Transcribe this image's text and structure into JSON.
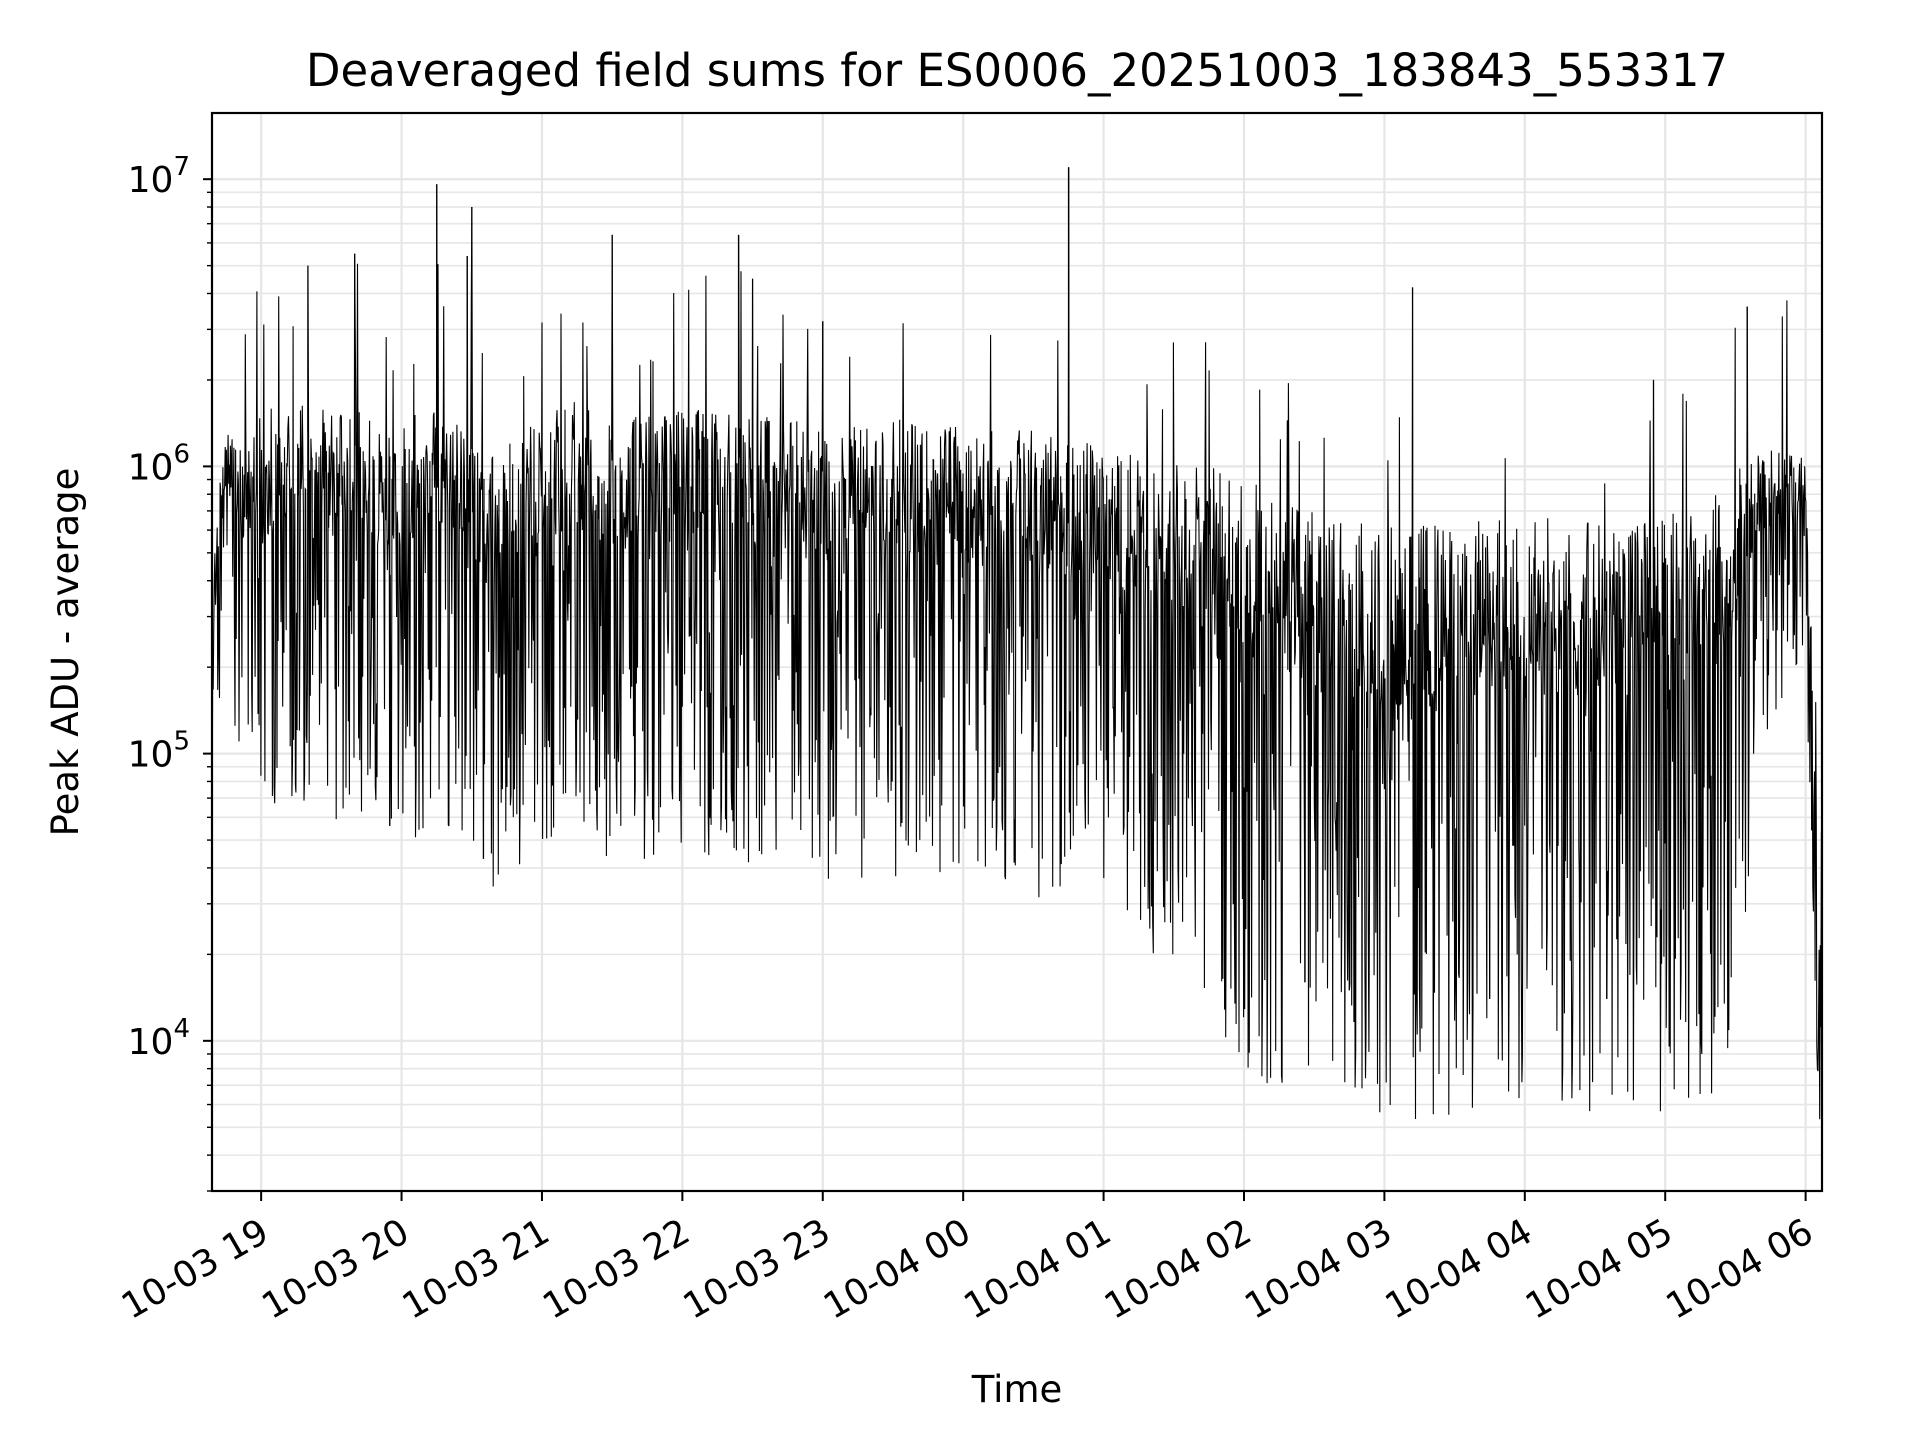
{
  "chart_data": {
    "type": "line",
    "title": "Deaveraged field sums for ES0006_20251003_183843_553317",
    "xlabel": "Time",
    "ylabel": "Peak ADU - average",
    "yscale": "log",
    "ylim": [
      3000,
      17000000
    ],
    "xlim": [
      "2025-10-03 18:39",
      "2025-10-04 06:07"
    ],
    "grid": true,
    "line_color": "#000000",
    "grid_color": "#e6e6e6",
    "x_ticks": [
      {
        "value": "2025-10-03 19:00",
        "label": "10-03 19"
      },
      {
        "value": "2025-10-03 20:00",
        "label": "10-03 20"
      },
      {
        "value": "2025-10-03 21:00",
        "label": "10-03 21"
      },
      {
        "value": "2025-10-03 22:00",
        "label": "10-03 22"
      },
      {
        "value": "2025-10-03 23:00",
        "label": "10-03 23"
      },
      {
        "value": "2025-10-04 00:00",
        "label": "10-04 00"
      },
      {
        "value": "2025-10-04 01:00",
        "label": "10-04 01"
      },
      {
        "value": "2025-10-04 02:00",
        "label": "10-04 02"
      },
      {
        "value": "2025-10-04 03:00",
        "label": "10-04 03"
      },
      {
        "value": "2025-10-04 04:00",
        "label": "10-04 04"
      },
      {
        "value": "2025-10-04 05:00",
        "label": "10-04 05"
      },
      {
        "value": "2025-10-04 06:00",
        "label": "10-04 06"
      }
    ],
    "y_ticks": [
      {
        "value": 10000,
        "base": "10",
        "exp": "4"
      },
      {
        "value": 100000,
        "base": "10",
        "exp": "5"
      },
      {
        "value": 1000000,
        "base": "10",
        "exp": "6"
      },
      {
        "value": 10000000,
        "base": "10",
        "exp": "7"
      }
    ],
    "series": [
      {
        "points": [
          [
            "2025-10-03 18:39",
            130000
          ],
          [
            "2025-10-03 18:40",
            420000
          ],
          [
            "2025-10-03 18:42",
            800000
          ],
          [
            "2025-10-03 18:45",
            1300000
          ],
          [
            "2025-10-03 18:50",
            950000
          ],
          [
            "2025-10-03 19:00",
            1100000
          ],
          [
            "2025-10-03 19:15",
            1350000
          ],
          [
            "2025-10-03 19:30",
            1250000
          ],
          [
            "2025-10-03 19:45",
            1150000
          ],
          [
            "2025-10-03 20:00",
            1050000
          ],
          [
            "2025-10-03 20:15",
            1200000
          ],
          [
            "2025-10-03 20:30",
            1150000
          ],
          [
            "2025-10-03 20:35",
            700000
          ],
          [
            "2025-10-03 20:45",
            950000
          ],
          [
            "2025-10-03 21:00",
            1100000
          ],
          [
            "2025-10-03 21:15",
            1300000
          ],
          [
            "2025-10-03 21:30",
            1050000
          ],
          [
            "2025-10-03 22:00",
            1150000
          ],
          [
            "2025-10-03 22:30",
            1100000
          ],
          [
            "2025-10-03 23:00",
            1000000
          ],
          [
            "2025-10-03 23:30",
            1050000
          ],
          [
            "2025-10-04 00:00",
            1000000
          ],
          [
            "2025-10-04 00:30",
            950000
          ],
          [
            "2025-10-04 01:00",
            850000
          ],
          [
            "2025-10-04 01:30",
            750000
          ],
          [
            "2025-10-04 02:00",
            600000
          ],
          [
            "2025-10-04 02:30",
            450000
          ],
          [
            "2025-10-04 03:00",
            400000
          ],
          [
            "2025-10-04 03:30",
            420000
          ],
          [
            "2025-10-04 04:00",
            430000
          ],
          [
            "2025-10-04 04:30",
            430000
          ],
          [
            "2025-10-04 05:00",
            440000
          ],
          [
            "2025-10-04 05:20",
            500000
          ],
          [
            "2025-10-04 05:40",
            950000
          ],
          [
            "2025-10-04 06:00",
            900000
          ],
          [
            "2025-10-04 06:03",
            180000
          ],
          [
            "2025-10-04 06:05",
            40000
          ],
          [
            "2025-10-04 06:07",
            15000
          ]
        ],
        "noise_spread": [
          [
            "2025-10-03 18:39",
            0.5
          ],
          [
            "2025-10-03 19:00",
            1.0
          ],
          [
            "2025-10-04 01:00",
            1.1
          ],
          [
            "2025-10-04 02:00",
            1.4
          ],
          [
            "2025-10-04 05:30",
            1.4
          ],
          [
            "2025-10-04 05:40",
            0.7
          ],
          [
            "2025-10-04 06:07",
            0.5
          ]
        ],
        "spikes": [
          [
            "2025-10-03 19:20",
            5000000
          ],
          [
            "2025-10-03 19:40",
            5500000
          ],
          [
            "2025-10-03 20:15",
            9600000
          ],
          [
            "2025-10-03 20:28",
            5400000
          ],
          [
            "2025-10-03 20:30",
            8000000
          ],
          [
            "2025-10-03 21:30",
            6400000
          ],
          [
            "2025-10-03 22:24",
            6400000
          ],
          [
            "2025-10-03 22:30",
            4500000
          ],
          [
            "2025-10-03 23:00",
            3200000
          ],
          [
            "2025-10-04 00:45",
            11000000
          ],
          [
            "2025-10-04 03:12",
            4200000
          ],
          [
            "2025-10-04 05:35",
            3600000
          ],
          [
            "2025-10-04 04:55",
            2000000
          ],
          [
            "2025-10-03 20:35",
            43000
          ],
          [
            "2025-10-03 19:55",
            56000
          ],
          [
            "2025-10-04 02:45",
            15000
          ],
          [
            "2025-10-04 03:15",
            15000
          ],
          [
            "2025-10-04 04:35",
            14000
          ],
          [
            "2025-10-04 03:45",
            14000
          ],
          [
            "2025-10-04 02:26",
            16000
          ]
        ]
      }
    ]
  }
}
